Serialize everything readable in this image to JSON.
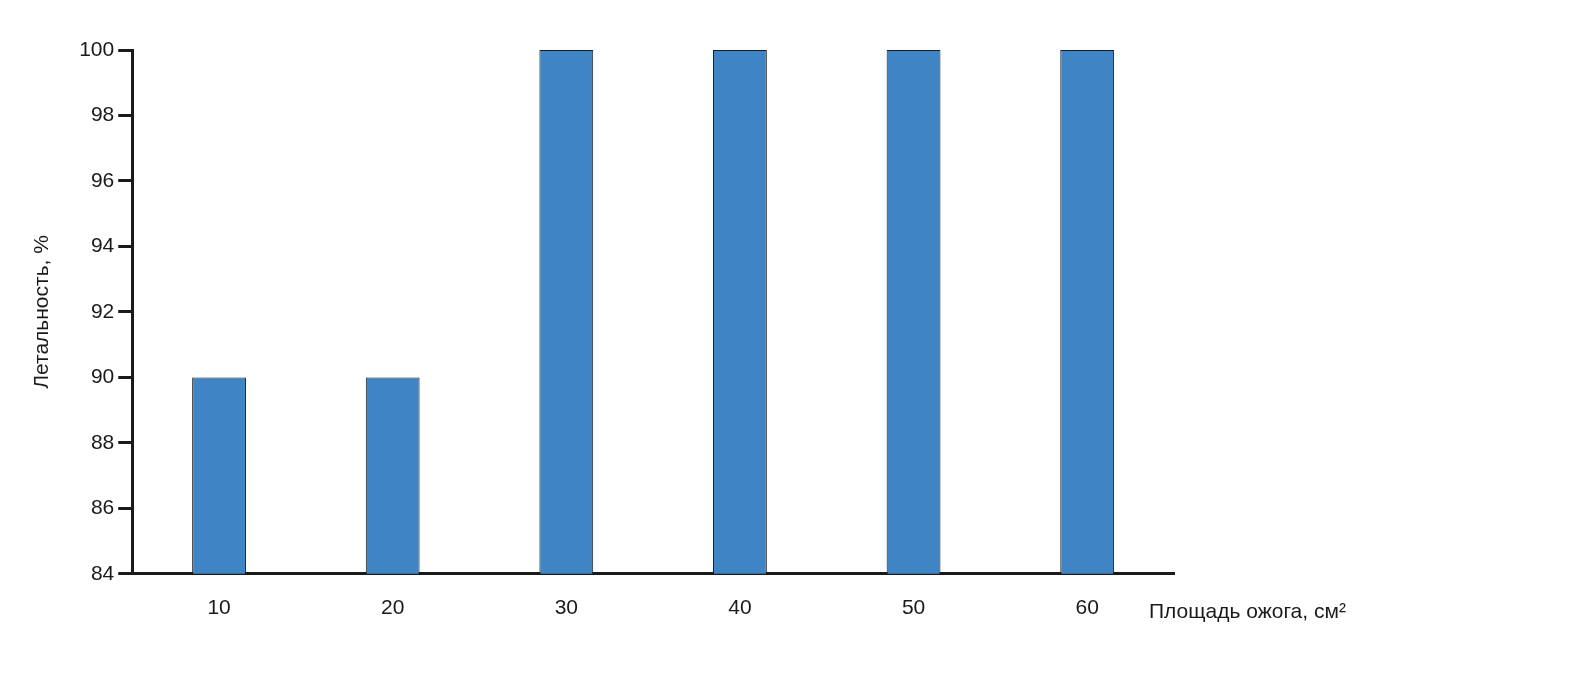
{
  "chart_data": {
    "type": "bar",
    "categories": [
      "10",
      "20",
      "30",
      "40",
      "50",
      "60"
    ],
    "values": [
      90,
      90,
      100,
      100,
      100,
      100
    ],
    "color": "#3f85c6",
    "ylim": [
      84,
      100
    ],
    "yticks": [
      84,
      86,
      88,
      90,
      92,
      94,
      96,
      98,
      100
    ],
    "ylabel": "Летальность, %",
    "xlabel": "Площадь ожога, см²",
    "grid": false,
    "legend": false
  }
}
